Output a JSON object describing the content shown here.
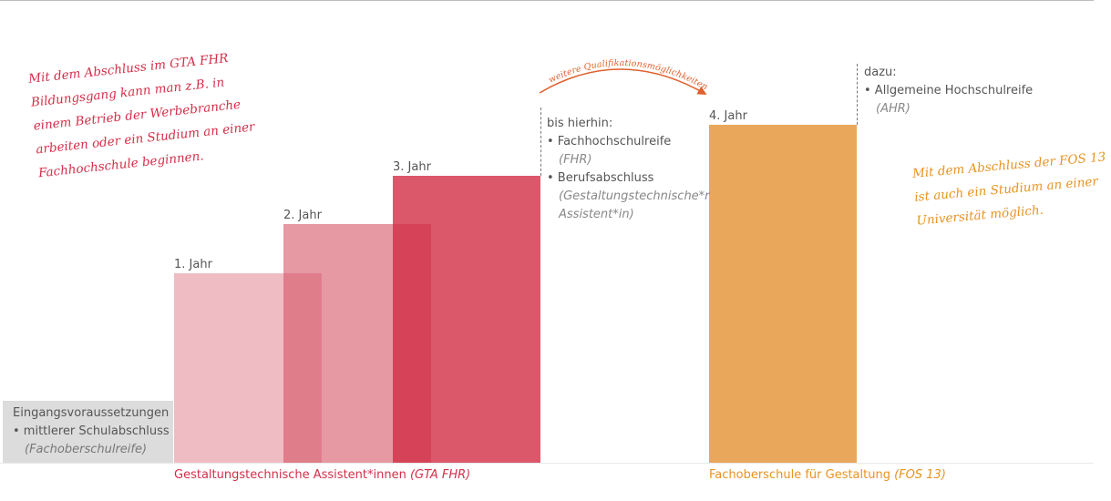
{
  "note_left": [
    "Mit dem Abschluss im GTA FHR",
    "Bildungsgang kann man z.B. in",
    "einem Betrieb der Werbebranche",
    "arbeiten oder ein Studium an einer",
    "Fachhochschule beginnen."
  ],
  "note_right": [
    "Mit dem Abschluss der FOS 13",
    "ist auch ein Studium an einer",
    "Universität möglich."
  ],
  "years": {
    "y1": "1. Jahr",
    "y2": "2. Jahr",
    "y3": "3. Jahr",
    "y4": "4. Jahr"
  },
  "entry": {
    "title": "Eingangsvoraussetzungen",
    "item": "• mittlerer Schulabschluss",
    "sub": "(Fachoberschulreife)"
  },
  "gta_info": {
    "heading": "bis hierhin:",
    "item1": "• Fachhochschulreife",
    "item1_sub": "(FHR)",
    "item2": "• Berufsabschluss",
    "item2_sub1": "(Gestaltungstechnische*r",
    "item2_sub2": "Assistent*in)"
  },
  "fos_info": {
    "heading": "dazu:",
    "item1": "• Allgemeine Hochschulreife",
    "item1_sub": "(AHR)"
  },
  "arrow_label": "weitere Qualifikationsmöglichkeiten",
  "programs": {
    "gta_name": "Gestaltungstechnische Assistent*innen",
    "gta_abbr": "(GTA FHR)",
    "fos_name": "Fachoberschule für Gestaltung",
    "fos_abbr": "(FOS 13)"
  },
  "colors": {
    "red": "#d42e49",
    "orange": "#e8931f",
    "arrow": "#e0602d"
  }
}
